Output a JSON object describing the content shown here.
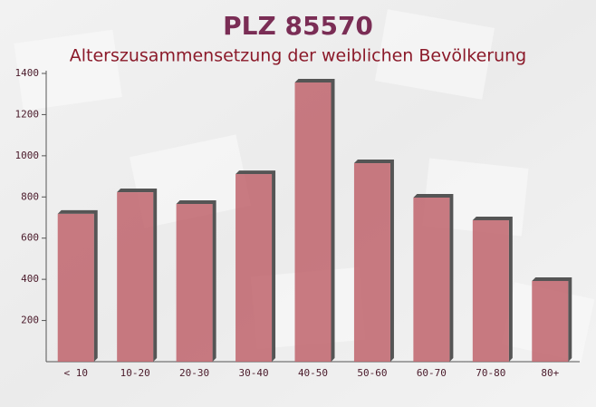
{
  "chart_data": {
    "type": "bar",
    "title": "PLZ 85570",
    "subtitle": "Alterszusammensetzung der weiblichen Bevölkerung",
    "categories": [
      "< 10",
      "10-20",
      "20-30",
      "30-40",
      "40-50",
      "50-60",
      "60-70",
      "70-80",
      "80+"
    ],
    "values": [
      718,
      823,
      766,
      911,
      1356,
      964,
      797,
      687,
      392
    ],
    "color": "#c0646c",
    "ylim": [
      0,
      1400
    ],
    "yticks": [
      200,
      400,
      600,
      800,
      1000,
      1200,
      1400
    ]
  }
}
